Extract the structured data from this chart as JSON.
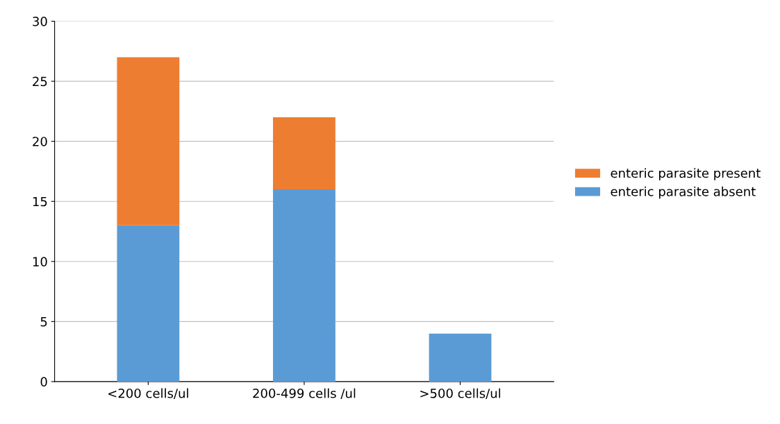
{
  "chart_data": {
    "type": "bar",
    "stacked": true,
    "categories": [
      "<200 cells/ul",
      "200-499 cells /ul",
      ">500 cells/ul"
    ],
    "series": [
      {
        "name": "enteric parasite absent",
        "color": "#5b9bd5",
        "values": [
          13,
          16,
          4
        ]
      },
      {
        "name": "enteric parasite present",
        "color": "#ed7d31",
        "values": [
          14,
          6,
          0
        ]
      }
    ],
    "ylim": [
      0,
      30
    ],
    "yticks": [
      0,
      5,
      10,
      15,
      20,
      25,
      30
    ],
    "grid": "y",
    "legend": "right"
  }
}
